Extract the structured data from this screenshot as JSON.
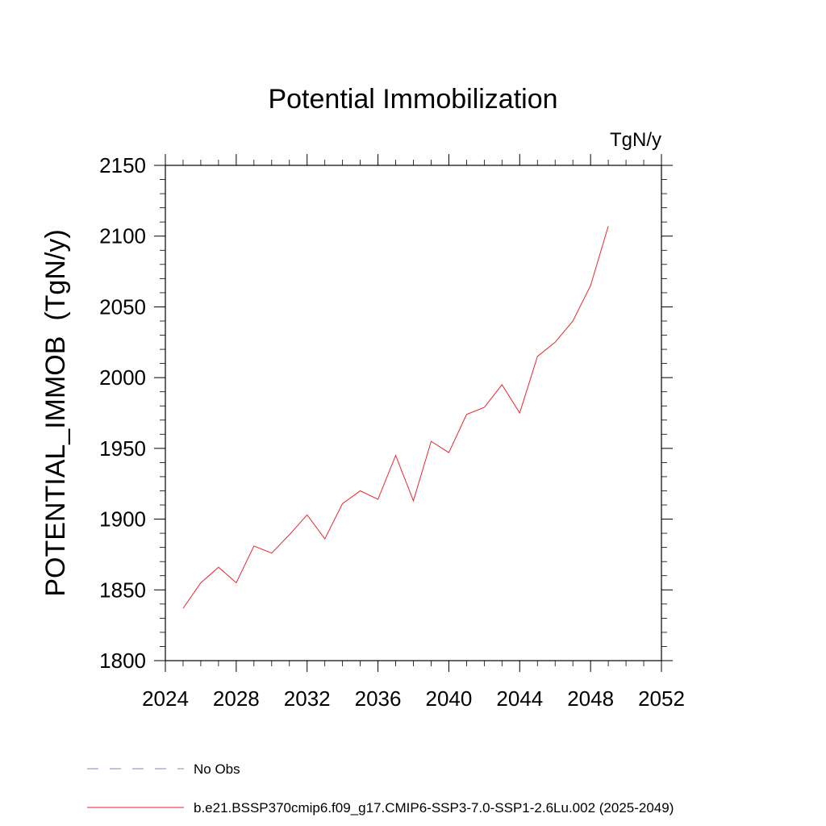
{
  "chart_data": {
    "type": "line",
    "title": "Potential Immobilization",
    "units_label": "TgN/y",
    "ylabel": "POTENTIAL_IMMOB  (TgN/y)",
    "xlabel": "",
    "xlim": [
      2024,
      2052
    ],
    "ylim": [
      1800,
      2150
    ],
    "x_ticks": [
      2024,
      2028,
      2032,
      2036,
      2040,
      2044,
      2048,
      2052
    ],
    "y_ticks": [
      1800,
      1850,
      1900,
      1950,
      2000,
      2050,
      2100,
      2150
    ],
    "grid": false,
    "legend_position": "bottom",
    "series": [
      {
        "name": "b.e21.BSSP370cmip6.f09_g17.CMIP6-SSP3-7.0-SSP1-2.6Lu.002 (2025-2049)",
        "color": "#e8262c",
        "style": "solid",
        "x": [
          2025,
          2026,
          2027,
          2028,
          2029,
          2030,
          2031,
          2032,
          2033,
          2034,
          2035,
          2036,
          2037,
          2038,
          2039,
          2040,
          2041,
          2042,
          2043,
          2044,
          2045,
          2046,
          2047,
          2048,
          2049
        ],
        "y": [
          1837,
          1855,
          1866,
          1855,
          1881,
          1876,
          1889,
          1903,
          1886,
          1911,
          1920,
          1914,
          1945,
          1913,
          1955,
          1947,
          1974,
          1979,
          1995,
          1975,
          2015,
          2025,
          2040,
          2065,
          2107
        ]
      }
    ],
    "legend": [
      {
        "label": "No Obs",
        "color": "#8b7fc0",
        "style": "dashed"
      },
      {
        "label": "b.e21.BSSP370cmip6.f09_g17.CMIP6-SSP3-7.0-SSP1-2.6Lu.002 (2025-2049)",
        "color": "#e8262c",
        "style": "solid"
      }
    ]
  }
}
